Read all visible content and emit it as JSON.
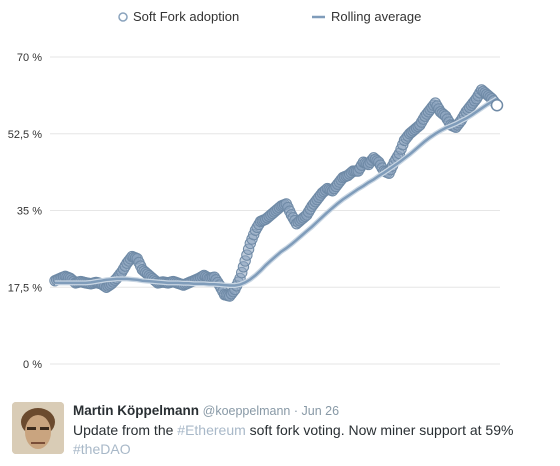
{
  "legend": {
    "series1_label": "Soft Fork adoption",
    "series2_label": "Rolling average"
  },
  "colors": {
    "marker": "#8aa3bd",
    "marker_stroke": "#6f8aa6",
    "line": "#7f9cba",
    "grid": "#e6e6e6",
    "hashtag": "#a8b8c8"
  },
  "chart_data": {
    "type": "line",
    "ylim": [
      0,
      70
    ],
    "yticks": [
      "0 %",
      "17,5 %",
      "35 %",
      "52,5 %",
      "70 %"
    ],
    "ytick_values": [
      0,
      17.5,
      35,
      52.5,
      70
    ],
    "legend_position": "top",
    "grid": true,
    "series": [
      {
        "name": "Soft Fork adoption",
        "style": "markers",
        "values": [
          19,
          19.5,
          20,
          19.5,
          18.5,
          18.8,
          18.5,
          18.3,
          18.6,
          18.3,
          17.5,
          18.3,
          19.5,
          21,
          23,
          24.5,
          24,
          21.5,
          20.5,
          19.5,
          18.5,
          18.7,
          18.5,
          18.8,
          18.4,
          18,
          18.5,
          19,
          19.5,
          20.2,
          19.5,
          19.8,
          18,
          15.8,
          15.5,
          17,
          19.5,
          23.5,
          27.5,
          30.5,
          32.5,
          33,
          34,
          35,
          36,
          36.5,
          34,
          32,
          33,
          34,
          36,
          37.5,
          39,
          40,
          39.5,
          41,
          42.5,
          43,
          44,
          44,
          46,
          45.5,
          47,
          46,
          44,
          43.5,
          46,
          48,
          51,
          52.5,
          53.5,
          54.5,
          56.5,
          58,
          59.5,
          57.5,
          56.5,
          54.5,
          54,
          55.5,
          57.5,
          59,
          60.5,
          62.5,
          61.5,
          60.5,
          59
        ]
      },
      {
        "name": "Rolling average",
        "style": "line",
        "values": [
          18.5,
          18.5,
          18.5,
          18.5,
          18.5,
          18.5,
          18.5,
          18.6,
          18.8,
          19,
          19.2,
          19.3,
          19.4,
          19.4,
          19.4,
          19.3,
          19.2,
          19,
          18.9,
          18.8,
          18.7,
          18.6,
          18.5,
          18.5,
          18.5,
          18.4,
          18.4,
          18.3,
          18.3,
          18.3,
          18.2,
          18.2,
          18.1,
          18,
          17.9,
          17.9,
          18.1,
          18.6,
          19.3,
          20.2,
          21.3,
          22.5,
          23.6,
          24.6,
          25.6,
          26.4,
          27.3,
          28.3,
          29.3,
          30.3,
          31.3,
          32.4,
          33.5,
          34.6,
          35.6,
          36.6,
          37.5,
          38.3,
          39.1,
          39.9,
          40.6,
          41.4,
          42.1,
          42.9,
          43.6,
          44.4,
          45.2,
          46,
          46.9,
          47.8,
          48.8,
          49.8,
          50.8,
          51.7,
          52.5,
          53.2,
          53.8,
          54.3,
          54.8,
          55.4,
          56,
          56.7,
          57.5,
          58.3,
          59.1,
          59.8,
          60.5
        ]
      }
    ]
  },
  "tweet": {
    "author_name": "Martin Köppelmann",
    "handle_date": "@koeppelmann · Jun 26",
    "text_before": "Update from the ",
    "hashtag1": "#Ethereum",
    "text_after": " soft fork voting. Now miner support at 59%",
    "hashtag2": "#theDAO"
  }
}
